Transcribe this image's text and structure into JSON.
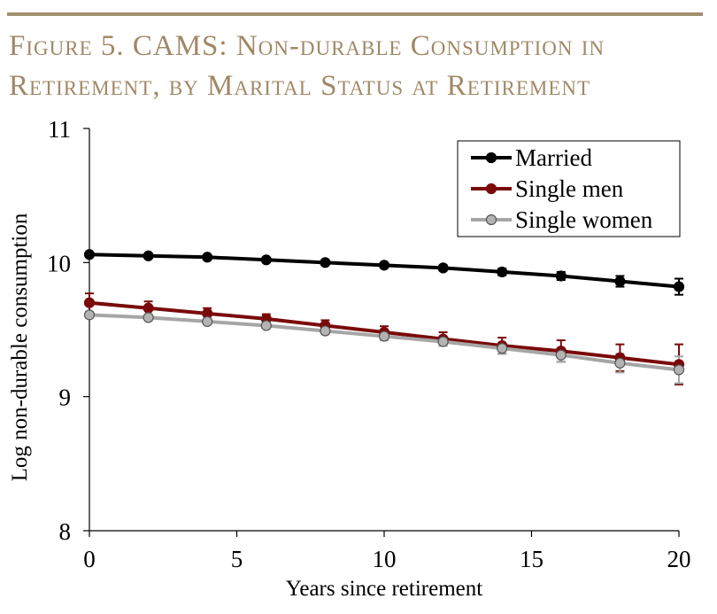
{
  "figure": {
    "title_line1": "Figure 5. CAMS: Non-durable Consumption in",
    "title_line2": "Retirement, by Marital Status at Retirement",
    "title_color": "#a08866",
    "rule_color": "#a2906f"
  },
  "chart_data": {
    "type": "line",
    "title": "Figure 5. CAMS: Non-durable Consumption in Retirement, by Marital Status at Retirement",
    "xlabel": "Years since retirement",
    "ylabel": "Log non-durable consumption",
    "xlim": [
      0,
      20
    ],
    "ylim": [
      8,
      11
    ],
    "xticks": [
      0,
      5,
      10,
      15,
      20
    ],
    "yticks": [
      8,
      9,
      10,
      11
    ],
    "grid": false,
    "legend_position": "top-right",
    "x": [
      0,
      2,
      4,
      6,
      8,
      10,
      12,
      14,
      16,
      18,
      20
    ],
    "series": [
      {
        "name": "Married",
        "color": "#000000",
        "marker_fill": "#000000",
        "values": [
          10.06,
          10.05,
          10.04,
          10.02,
          10.0,
          9.98,
          9.96,
          9.93,
          9.9,
          9.86,
          9.82
        ],
        "error": [
          0.01,
          0.01,
          0.01,
          0.01,
          0.01,
          0.015,
          0.02,
          0.025,
          0.03,
          0.04,
          0.06
        ]
      },
      {
        "name": "Single men",
        "color": "#7a0a0a",
        "marker_fill": "#7a0a0a",
        "values": [
          9.7,
          9.66,
          9.62,
          9.58,
          9.53,
          9.48,
          9.43,
          9.38,
          9.34,
          9.29,
          9.24
        ],
        "error": [
          0.07,
          0.05,
          0.04,
          0.035,
          0.04,
          0.045,
          0.05,
          0.06,
          0.08,
          0.1,
          0.15
        ]
      },
      {
        "name": "Single women",
        "color": "#a6a6a6",
        "marker_fill": "#b3b3b3",
        "values": [
          9.61,
          9.59,
          9.56,
          9.53,
          9.49,
          9.45,
          9.41,
          9.36,
          9.31,
          9.25,
          9.2
        ],
        "error": [
          0.02,
          0.02,
          0.02,
          0.02,
          0.025,
          0.03,
          0.03,
          0.04,
          0.05,
          0.07,
          0.1
        ]
      }
    ]
  }
}
